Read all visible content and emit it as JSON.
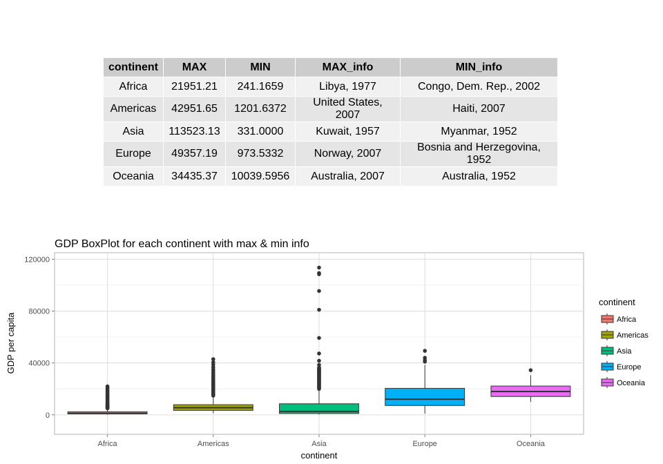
{
  "table": {
    "headers": [
      "continent",
      "MAX",
      "MIN",
      "MAX_info",
      "MIN_info"
    ],
    "rows": [
      [
        "Africa",
        "21951.21",
        "241.1659",
        "Libya, 1977",
        "Congo, Dem. Rep., 2002"
      ],
      [
        "Americas",
        "42951.65",
        "1201.6372",
        "United States, 2007",
        "Haiti, 2007"
      ],
      [
        "Asia",
        "113523.13",
        "331.0000",
        "Kuwait, 1957",
        "Myanmar, 1952"
      ],
      [
        "Europe",
        "49357.19",
        "973.5332",
        "Norway, 2007",
        "Bosnia and Herzegovina, 1952"
      ],
      [
        "Oceania",
        "34435.37",
        "10039.5956",
        "Australia, 2007",
        "Australia, 1952"
      ]
    ]
  },
  "chart_data": {
    "type": "boxplot",
    "title": "GDP BoxPlot for each continent with max & min info",
    "xlabel": "continent",
    "ylabel": "GDP per capita",
    "ylim": [
      -15000,
      125000
    ],
    "yticks": [
      0,
      40000,
      80000,
      120000
    ],
    "ytick_labels": [
      "0",
      "40000",
      "80000",
      "120000"
    ],
    "grid": true,
    "legend": {
      "title": "continent",
      "placement": "right"
    },
    "categories": [
      "Africa",
      "Americas",
      "Asia",
      "Europe",
      "Oceania"
    ],
    "colors": {
      "Africa": "#f8766d",
      "Americas": "#a3a500",
      "Asia": "#00bf7d",
      "Europe": "#00b0f6",
      "Oceania": "#e76bf3"
    },
    "boxes": [
      {
        "name": "Africa",
        "whisker_low": 241,
        "q1": 760,
        "median": 1190,
        "q3": 2380,
        "whisker_high": 4700,
        "outliers": [
          5000,
          5300,
          5600,
          5900,
          6200,
          6500,
          6900,
          7300,
          7700,
          8100,
          8500,
          9000,
          9700,
          10500,
          11500,
          12300,
          12800,
          13200,
          14000,
          14700,
          15500,
          16500,
          17500,
          18500,
          19500,
          20400,
          21000,
          21951
        ]
      },
      {
        "name": "Americas",
        "whisker_low": 1202,
        "q1": 3430,
        "median": 5470,
        "q3": 7830,
        "whisker_high": 14300,
        "outliers": [
          14800,
          15400,
          16000,
          16700,
          17400,
          18100,
          18900,
          19700,
          20500,
          21300,
          22000,
          22700,
          23500,
          24300,
          25000,
          25800,
          26800,
          28000,
          29300,
          30500,
          32000,
          33500,
          35000,
          36800,
          38800,
          40600,
          42952
        ]
      },
      {
        "name": "Asia",
        "whisker_low": 331,
        "q1": 1060,
        "median": 2650,
        "q3": 8550,
        "whisker_high": 19500,
        "outliers": [
          20000,
          20500,
          21000,
          21500,
          22000,
          22500,
          23000,
          23500,
          24000,
          24500,
          25000,
          25500,
          26000,
          26500,
          27000,
          27500,
          28000,
          28500,
          29000,
          29500,
          30000,
          30500,
          31000,
          31500,
          32000,
          32500,
          33000,
          33500,
          34000,
          34500,
          35000,
          35500,
          36000,
          36500,
          38500,
          41700,
          47300,
          59300,
          81000,
          95500,
          108400,
          109300,
          113523
        ]
      },
      {
        "name": "Europe",
        "whisker_low": 974,
        "q1": 7200,
        "median": 12080,
        "q3": 20460,
        "whisker_high": 38500,
        "outliers": [
          41000,
          42200,
          44000,
          49357
        ]
      },
      {
        "name": "Oceania",
        "whisker_low": 10040,
        "q1": 14140,
        "median": 17980,
        "q3": 22210,
        "whisker_high": 30500,
        "outliers": [
          34435
        ]
      }
    ]
  }
}
